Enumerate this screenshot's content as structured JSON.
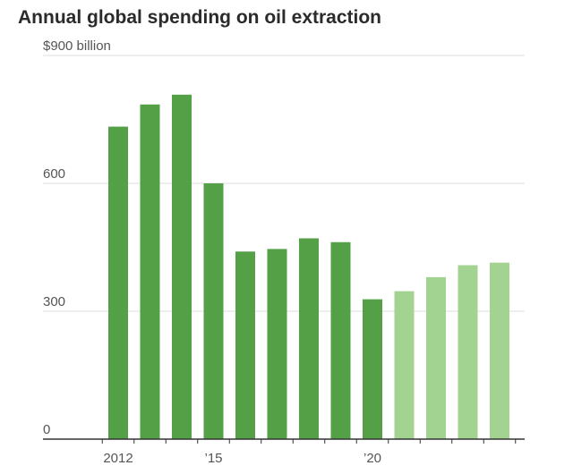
{
  "chart_data": {
    "type": "bar",
    "title": "Annual global spending on oil extraction",
    "unit_label": "$900 billion",
    "x": [
      2012,
      2013,
      2014,
      2015,
      2016,
      2017,
      2018,
      2019,
      2020,
      2021,
      2022,
      2023,
      2024
    ],
    "values": [
      733,
      785,
      808,
      600,
      440,
      446,
      471,
      462,
      328,
      347,
      380,
      408,
      414
    ],
    "projected_from": 2021,
    "ylim": [
      0,
      900
    ],
    "yticks": [
      {
        "value": 0,
        "label": "0"
      },
      {
        "value": 300,
        "label": "300"
      },
      {
        "value": 600,
        "label": "600"
      },
      {
        "value": 900,
        "label": "$900 billion"
      }
    ],
    "xticks": [
      {
        "value": 2012,
        "label": "2012"
      },
      {
        "value": 2015,
        "label": "’15"
      },
      {
        "value": 2020,
        "label": "’20"
      }
    ],
    "grid": true,
    "colors": {
      "actual": "#53a047",
      "projected": "#a3d391",
      "grid": "#dddddd",
      "axis": "#333333"
    }
  }
}
